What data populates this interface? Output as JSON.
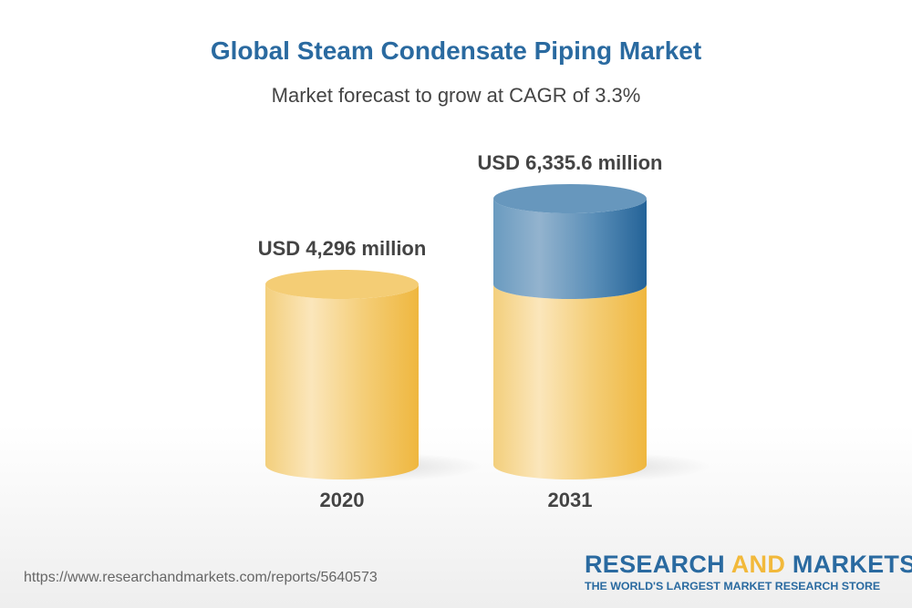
{
  "title": "Global Steam Condensate Piping Market",
  "subtitle": "Market forecast to grow at CAGR of 3.3%",
  "chart_data": {
    "type": "bar",
    "style": "3d-cylinder",
    "categories": [
      "2020",
      "2031"
    ],
    "values": [
      4296,
      6335.6
    ],
    "data_labels": [
      "USD 4,296 million",
      "USD 6,335.6 million"
    ],
    "unit": "USD million",
    "colors": {
      "base": "#f2b93b",
      "growth": "#2a6aa0"
    }
  },
  "footer": {
    "url": "https://www.researchandmarkets.com/reports/5640573"
  },
  "logo": {
    "part1": "RESEARCH ",
    "part2": "AND",
    "part3": " MARKETS",
    "tagline": "THE WORLD'S LARGEST MARKET RESEARCH STORE"
  }
}
